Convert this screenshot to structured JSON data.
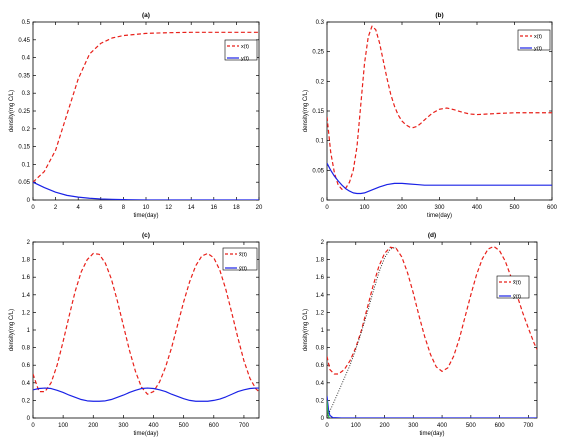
{
  "chart_data": [
    {
      "panel": "(a)",
      "type": "line",
      "title": "(a)",
      "xlabel": "time(day)",
      "ylabel": "density(mg C/L)",
      "xlim": [
        0,
        20
      ],
      "ylim": [
        0,
        0.5
      ],
      "xticks": [
        0,
        2,
        4,
        6,
        8,
        10,
        12,
        14,
        16,
        18,
        20
      ],
      "yticks": [
        0,
        0.05,
        0.1,
        0.15,
        0.2,
        0.25,
        0.3,
        0.35,
        0.4,
        0.45,
        0.5
      ],
      "legend": "top-right",
      "series": [
        {
          "name": "x(t)",
          "style": "dashed",
          "color": "#e8201a",
          "x": [
            0,
            1,
            2,
            3,
            4,
            5,
            6,
            7,
            8,
            10,
            12,
            14,
            16,
            18,
            20
          ],
          "y": [
            0.05,
            0.08,
            0.14,
            0.24,
            0.34,
            0.41,
            0.44,
            0.455,
            0.462,
            0.468,
            0.47,
            0.471,
            0.471,
            0.471,
            0.471
          ]
        },
        {
          "name": "y(t)",
          "style": "solid",
          "color": "#1a22e6",
          "x": [
            0,
            1,
            2,
            3,
            4,
            5,
            6,
            7,
            8,
            10,
            12,
            14,
            16,
            18,
            20
          ],
          "y": [
            0.05,
            0.035,
            0.022,
            0.013,
            0.008,
            0.005,
            0.003,
            0.002,
            0.001,
            0,
            0,
            0,
            0,
            0,
            0
          ]
        }
      ]
    },
    {
      "panel": "(b)",
      "type": "line",
      "title": "(b)",
      "xlabel": "time(day)",
      "ylabel": "density(mg C/L)",
      "xlim": [
        0,
        600
      ],
      "ylim": [
        0,
        0.3
      ],
      "xticks": [
        0,
        100,
        200,
        300,
        400,
        500,
        600
      ],
      "yticks": [
        0,
        0.05,
        0.1,
        0.15,
        0.2,
        0.25,
        0.3
      ],
      "legend": "top-right",
      "series": [
        {
          "name": "x(t)",
          "style": "dashed",
          "color": "#e8201a",
          "x": [
            0,
            10,
            20,
            30,
            40,
            50,
            60,
            70,
            80,
            90,
            100,
            110,
            120,
            130,
            140,
            150,
            160,
            170,
            180,
            190,
            200,
            210,
            220,
            230,
            240,
            250,
            260,
            280,
            300,
            320,
            340,
            360,
            380,
            400,
            430,
            460,
            500,
            550,
            600
          ],
          "y": [
            0.14,
            0.08,
            0.045,
            0.025,
            0.018,
            0.02,
            0.03,
            0.05,
            0.09,
            0.16,
            0.23,
            0.275,
            0.293,
            0.287,
            0.265,
            0.235,
            0.205,
            0.178,
            0.158,
            0.143,
            0.133,
            0.127,
            0.123,
            0.122,
            0.124,
            0.129,
            0.135,
            0.146,
            0.153,
            0.155,
            0.152,
            0.148,
            0.145,
            0.144,
            0.145,
            0.146,
            0.147,
            0.147,
            0.147
          ]
        },
        {
          "name": "y(t)",
          "style": "solid",
          "color": "#1a22e6",
          "x": [
            0,
            10,
            20,
            30,
            40,
            50,
            60,
            70,
            80,
            90,
            100,
            120,
            140,
            160,
            180,
            200,
            220,
            240,
            260,
            280,
            300,
            340,
            380,
            420,
            460,
            500,
            550,
            600
          ],
          "y": [
            0.062,
            0.05,
            0.04,
            0.032,
            0.025,
            0.019,
            0.015,
            0.012,
            0.011,
            0.011,
            0.012,
            0.017,
            0.022,
            0.026,
            0.028,
            0.028,
            0.027,
            0.026,
            0.025,
            0.025,
            0.025,
            0.025,
            0.025,
            0.025,
            0.025,
            0.025,
            0.025,
            0.025
          ]
        }
      ]
    },
    {
      "panel": "(c)",
      "type": "line",
      "title": "(c)",
      "xlabel": "time(day)",
      "ylabel": "density(mg C/L)",
      "xlim": [
        0,
        750
      ],
      "ylim": [
        0,
        2
      ],
      "xticks": [
        0,
        100,
        200,
        300,
        400,
        500,
        600,
        700
      ],
      "yticks": [
        0,
        0.2,
        0.4,
        0.6,
        0.8,
        1,
        1.2,
        1.4,
        1.6,
        1.8,
        2
      ],
      "legend": "top-right",
      "series": [
        {
          "name": "x̃(t)",
          "style": "dashed",
          "color": "#e8201a",
          "x": [
            0,
            20,
            40,
            60,
            80,
            100,
            120,
            140,
            160,
            180,
            200,
            220,
            240,
            260,
            280,
            300,
            320,
            340,
            360,
            380,
            400,
            420,
            440,
            460,
            480,
            500,
            520,
            540,
            560,
            580,
            600,
            620,
            640,
            660,
            680,
            700,
            720,
            740,
            750
          ],
          "y": [
            0.5,
            0.3,
            0.3,
            0.4,
            0.6,
            0.87,
            1.16,
            1.44,
            1.66,
            1.8,
            1.87,
            1.86,
            1.76,
            1.58,
            1.33,
            1.05,
            0.77,
            0.53,
            0.35,
            0.27,
            0.3,
            0.41,
            0.58,
            0.8,
            1.06,
            1.32,
            1.55,
            1.73,
            1.84,
            1.87,
            1.82,
            1.68,
            1.46,
            1.19,
            0.91,
            0.65,
            0.45,
            0.33,
            0.3
          ]
        },
        {
          "name": "ỹ(t)",
          "style": "solid",
          "color": "#1a22e6",
          "x": [
            0,
            20,
            40,
            60,
            80,
            100,
            120,
            140,
            160,
            180,
            200,
            220,
            240,
            260,
            280,
            300,
            320,
            340,
            360,
            380,
            400,
            420,
            440,
            460,
            480,
            500,
            520,
            540,
            560,
            580,
            600,
            620,
            640,
            660,
            680,
            700,
            720,
            740,
            750
          ],
          "y": [
            0.32,
            0.335,
            0.34,
            0.335,
            0.315,
            0.29,
            0.26,
            0.235,
            0.21,
            0.195,
            0.19,
            0.19,
            0.195,
            0.21,
            0.235,
            0.26,
            0.29,
            0.315,
            0.335,
            0.34,
            0.335,
            0.32,
            0.3,
            0.27,
            0.245,
            0.22,
            0.2,
            0.19,
            0.19,
            0.19,
            0.2,
            0.215,
            0.24,
            0.27,
            0.3,
            0.32,
            0.335,
            0.34,
            0.34
          ]
        }
      ]
    },
    {
      "panel": "(d)",
      "type": "line",
      "title": "(d)",
      "xlabel": "time(day)",
      "ylabel": "density(mg C/L)",
      "xlim": [
        0,
        730
      ],
      "ylim": [
        0,
        2
      ],
      "xticks": [
        0,
        100,
        200,
        300,
        400,
        500,
        600,
        700
      ],
      "yticks": [
        0,
        0.2,
        0.4,
        0.6,
        0.8,
        1,
        1.2,
        1.4,
        1.6,
        1.8,
        2
      ],
      "legend": "top-right",
      "series": [
        {
          "name": "x̃(t)",
          "style": "dashed",
          "color": "#e8201a",
          "x": [
            0,
            10,
            25,
            40,
            60,
            80,
            100,
            120,
            140,
            160,
            180,
            200,
            220,
            240,
            260,
            280,
            300,
            320,
            340,
            360,
            380,
            400,
            420,
            440,
            460,
            480,
            500,
            520,
            540,
            560,
            580,
            600,
            620,
            640,
            660,
            680,
            700,
            720,
            730
          ],
          "y": [
            0.7,
            0.55,
            0.5,
            0.5,
            0.55,
            0.65,
            0.8,
            1.0,
            1.25,
            1.5,
            1.72,
            1.87,
            1.94,
            1.93,
            1.83,
            1.65,
            1.42,
            1.16,
            0.92,
            0.72,
            0.58,
            0.53,
            0.57,
            0.7,
            0.9,
            1.15,
            1.4,
            1.63,
            1.81,
            1.92,
            1.95,
            1.9,
            1.78,
            1.6,
            1.4,
            1.2,
            1.02,
            0.85,
            0.78
          ]
        },
        {
          "name": "ỹ(t)",
          "style": "solid",
          "color": "#1a22e6",
          "x": [
            0,
            5,
            10,
            20,
            50,
            100,
            200,
            300,
            400,
            500,
            600,
            700,
            730
          ],
          "y": [
            0.25,
            0.1,
            0.03,
            0.005,
            0,
            0,
            0,
            0,
            0,
            0,
            0,
            0,
            0
          ]
        },
        {
          "name": "",
          "style": "dotted",
          "color": "#222222",
          "x": [
            0,
            10,
            20,
            40,
            60,
            80,
            100,
            120,
            140,
            160,
            180,
            200,
            220,
            240
          ],
          "y": [
            0.02,
            0.08,
            0.15,
            0.3,
            0.45,
            0.6,
            0.78,
            0.98,
            1.2,
            1.43,
            1.65,
            1.82,
            1.92,
            1.94
          ]
        },
        {
          "name": "",
          "style": "solid",
          "color": "#2db34a",
          "x": [
            0,
            2,
            4,
            6,
            8,
            10
          ],
          "y": [
            0.2,
            0.1,
            0.04,
            0.015,
            0.005,
            0
          ]
        }
      ]
    }
  ]
}
